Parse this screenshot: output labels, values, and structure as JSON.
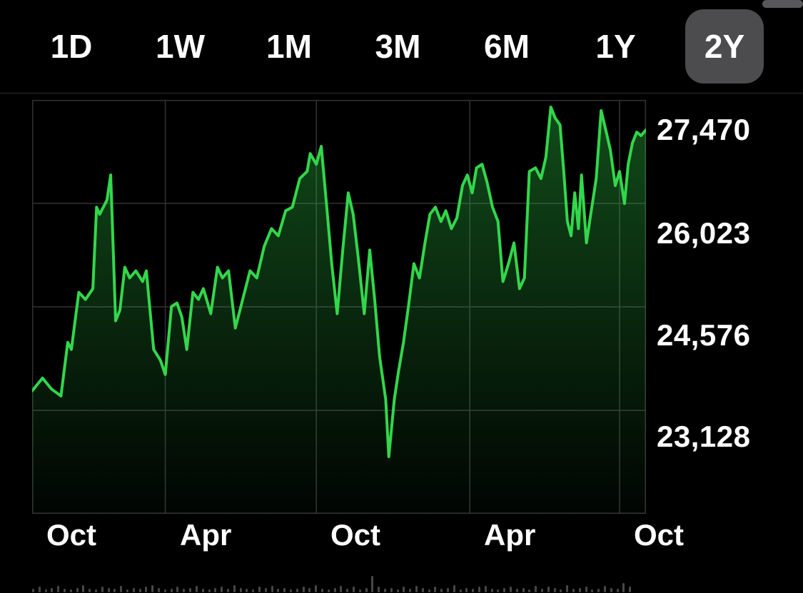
{
  "tabbar": {
    "items": [
      {
        "label": "1D"
      },
      {
        "label": "1W"
      },
      {
        "label": "1M"
      },
      {
        "label": "3M"
      },
      {
        "label": "6M"
      },
      {
        "label": "1Y"
      },
      {
        "label": "2Y"
      }
    ],
    "selected_index": 6
  },
  "colors": {
    "background": "#000000",
    "accent_green": "#32d74b",
    "grid": "#323234",
    "selected_tab_bg": "#4c4c4e",
    "volume_bar": "#48484a",
    "text": "#ffffff"
  },
  "chart_data": {
    "type": "area",
    "title": "",
    "xlabel": "",
    "ylabel": "",
    "legend": false,
    "grid": true,
    "x_ticks": [
      {
        "label": "Oct",
        "pos": 0
      },
      {
        "label": "Apr",
        "pos": 0.217
      },
      {
        "label": "Oct",
        "pos": 0.463
      },
      {
        "label": "Apr",
        "pos": 0.713
      },
      {
        "label": "Oct",
        "pos": 0.957
      }
    ],
    "y_ticks": [
      {
        "label": "27,470",
        "value": 27470
      },
      {
        "label": "26,023",
        "value": 26023
      },
      {
        "label": "24,576",
        "value": 24576
      },
      {
        "label": "23,128",
        "value": 23128
      }
    ],
    "ylim": [
      21682,
      27470
    ],
    "points": [
      [
        0.0,
        23400
      ],
      [
        0.017,
        23580
      ],
      [
        0.031,
        23430
      ],
      [
        0.047,
        23330
      ],
      [
        0.058,
        24080
      ],
      [
        0.064,
        23980
      ],
      [
        0.076,
        24780
      ],
      [
        0.087,
        24680
      ],
      [
        0.099,
        24830
      ],
      [
        0.105,
        25970
      ],
      [
        0.11,
        25870
      ],
      [
        0.122,
        26070
      ],
      [
        0.128,
        26420
      ],
      [
        0.136,
        24380
      ],
      [
        0.143,
        24530
      ],
      [
        0.151,
        25130
      ],
      [
        0.159,
        24980
      ],
      [
        0.169,
        25080
      ],
      [
        0.18,
        24930
      ],
      [
        0.186,
        25080
      ],
      [
        0.198,
        23980
      ],
      [
        0.209,
        23830
      ],
      [
        0.217,
        23630
      ],
      [
        0.227,
        24580
      ],
      [
        0.236,
        24630
      ],
      [
        0.244,
        24430
      ],
      [
        0.252,
        23980
      ],
      [
        0.262,
        24780
      ],
      [
        0.271,
        24680
      ],
      [
        0.279,
        24830
      ],
      [
        0.291,
        24480
      ],
      [
        0.302,
        25130
      ],
      [
        0.31,
        24980
      ],
      [
        0.32,
        25080
      ],
      [
        0.331,
        24280
      ],
      [
        0.343,
        24680
      ],
      [
        0.355,
        25080
      ],
      [
        0.366,
        24980
      ],
      [
        0.378,
        25420
      ],
      [
        0.39,
        25670
      ],
      [
        0.401,
        25570
      ],
      [
        0.413,
        25920
      ],
      [
        0.424,
        25970
      ],
      [
        0.436,
        26370
      ],
      [
        0.448,
        26470
      ],
      [
        0.453,
        26720
      ],
      [
        0.463,
        26570
      ],
      [
        0.471,
        26820
      ],
      [
        0.48,
        25970
      ],
      [
        0.488,
        25180
      ],
      [
        0.497,
        24480
      ],
      [
        0.506,
        25370
      ],
      [
        0.515,
        26170
      ],
      [
        0.523,
        25870
      ],
      [
        0.531,
        25280
      ],
      [
        0.541,
        24480
      ],
      [
        0.55,
        25370
      ],
      [
        0.558,
        24680
      ],
      [
        0.566,
        23880
      ],
      [
        0.576,
        23280
      ],
      [
        0.581,
        22480
      ],
      [
        0.59,
        23280
      ],
      [
        0.597,
        23680
      ],
      [
        0.605,
        24080
      ],
      [
        0.613,
        24580
      ],
      [
        0.622,
        25180
      ],
      [
        0.631,
        24980
      ],
      [
        0.64,
        25470
      ],
      [
        0.648,
        25870
      ],
      [
        0.657,
        25970
      ],
      [
        0.666,
        25770
      ],
      [
        0.674,
        25920
      ],
      [
        0.683,
        25670
      ],
      [
        0.692,
        25820
      ],
      [
        0.701,
        26270
      ],
      [
        0.709,
        26420
      ],
      [
        0.717,
        26170
      ],
      [
        0.724,
        26520
      ],
      [
        0.733,
        26570
      ],
      [
        0.741,
        26320
      ],
      [
        0.75,
        25970
      ],
      [
        0.759,
        25770
      ],
      [
        0.767,
        24930
      ],
      [
        0.776,
        25180
      ],
      [
        0.785,
        25470
      ],
      [
        0.794,
        24830
      ],
      [
        0.802,
        24980
      ],
      [
        0.81,
        26470
      ],
      [
        0.82,
        26520
      ],
      [
        0.829,
        26370
      ],
      [
        0.837,
        26670
      ],
      [
        0.845,
        27370
      ],
      [
        0.852,
        27220
      ],
      [
        0.86,
        27120
      ],
      [
        0.866,
        26470
      ],
      [
        0.872,
        25770
      ],
      [
        0.878,
        25570
      ],
      [
        0.884,
        26170
      ],
      [
        0.89,
        25670
      ],
      [
        0.895,
        26420
      ],
      [
        0.903,
        25470
      ],
      [
        0.91,
        25870
      ],
      [
        0.919,
        26370
      ],
      [
        0.927,
        27320
      ],
      [
        0.934,
        27070
      ],
      [
        0.942,
        26770
      ],
      [
        0.95,
        26270
      ],
      [
        0.957,
        26470
      ],
      [
        0.965,
        26020
      ],
      [
        0.971,
        26570
      ],
      [
        0.978,
        26870
      ],
      [
        0.985,
        27020
      ],
      [
        0.992,
        26970
      ],
      [
        1.0,
        27050
      ]
    ],
    "volume": {
      "type": "bar",
      "values": [
        4,
        6,
        3,
        5,
        7,
        4,
        3,
        5,
        8,
        4,
        3,
        6,
        5,
        4,
        7,
        3,
        5,
        4,
        6,
        8,
        5,
        3,
        4,
        6,
        4,
        5,
        7,
        4,
        3,
        5,
        6,
        4,
        8,
        5,
        4,
        3,
        6,
        5,
        7,
        4,
        5,
        3,
        4,
        6,
        5,
        8,
        4,
        3,
        5,
        7,
        4,
        6,
        3,
        5,
        18,
        6,
        4,
        5,
        3,
        6,
        4,
        7,
        5,
        3,
        6,
        4,
        5,
        8,
        3,
        5,
        4,
        6,
        7,
        4,
        3,
        5,
        6,
        4,
        5,
        3,
        7,
        4,
        6,
        5,
        3,
        8,
        4,
        5,
        6,
        3,
        4,
        7,
        5,
        4,
        10,
        6
      ]
    }
  }
}
